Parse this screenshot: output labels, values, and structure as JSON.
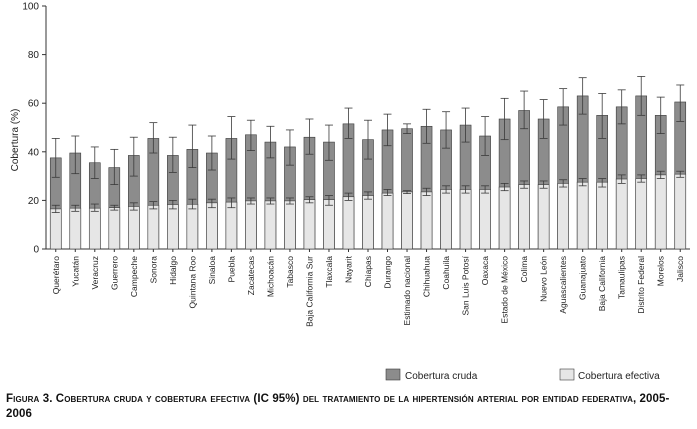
{
  "chart_data": {
    "type": "bar",
    "stacked": true,
    "ylabel": "Cobertura (%)",
    "ylim": [
      0,
      100
    ],
    "yticks": [
      0,
      20,
      40,
      60,
      80,
      100
    ],
    "categories": [
      "Querétaro",
      "Yucatán",
      "Veracruz",
      "Guerrero",
      "Campeche",
      "Sonora",
      "Hidalgo",
      "Quintana Roo",
      "Sinaloa",
      "Puebla",
      "Zacatecas",
      "Michoacán",
      "Tabasco",
      "Baja California Sur",
      "Tlaxcala",
      "Nayarit",
      "Chiapas",
      "Durango",
      "Estimado nacional",
      "Chihuahua",
      "Coahuila",
      "San Luis Potosí",
      "Oaxaca",
      "Estado de México",
      "Colima",
      "Nuevo León",
      "Aguascalientes",
      "Guanajuato",
      "Baja California",
      "Tamaulipas",
      "Distrito Federal",
      "Morelos",
      "Jalisco"
    ],
    "series": [
      {
        "name": "Cobertura cruda",
        "values": [
          37.5,
          39.5,
          35.5,
          33.5,
          38.5,
          45.5,
          38.5,
          41,
          39.5,
          45.5,
          47,
          44,
          42,
          46,
          44,
          51.5,
          45,
          49,
          49.5,
          50.5,
          49,
          51,
          46.5,
          53.5,
          57,
          53.5,
          58.5,
          63,
          55,
          58.5,
          63,
          55,
          60.5
        ],
        "ci_lower": [
          29.5,
          31,
          29,
          26.5,
          30,
          39.5,
          31.5,
          33.5,
          32.5,
          37,
          40.5,
          37.5,
          34.5,
          39,
          36.5,
          45.5,
          37,
          42.5,
          47.5,
          43.5,
          41.5,
          44,
          38.5,
          45,
          49.5,
          45.5,
          51,
          55.5,
          45.5,
          51.5,
          55,
          47.5,
          52.5
        ],
        "ci_upper": [
          45.5,
          46.5,
          42,
          41,
          46,
          52,
          46,
          51,
          46.5,
          54.5,
          53,
          50.5,
          49,
          53.5,
          51,
          58,
          53,
          55.5,
          51.5,
          57.5,
          56.5,
          58,
          54.5,
          62,
          65,
          61.5,
          66,
          70.5,
          64,
          65.5,
          71,
          62.5,
          67.5
        ]
      },
      {
        "name": "Cobertura efectiva",
        "values": [
          16.5,
          16.8,
          16.8,
          17,
          17.5,
          18,
          18.3,
          18.4,
          19,
          19.3,
          19.8,
          19.8,
          19.8,
          20.3,
          20.3,
          21.5,
          22,
          23,
          23.5,
          23.5,
          24.5,
          24.5,
          24.5,
          25.5,
          26.5,
          26.5,
          27,
          27.5,
          27.5,
          28.8,
          29,
          30.5,
          30.8
        ],
        "ci_lower": [
          15,
          15.5,
          15.5,
          16,
          16,
          16.5,
          16.5,
          16.5,
          17,
          17,
          18.5,
          18.5,
          18.5,
          19,
          18,
          20,
          20.5,
          22,
          22.8,
          22,
          23,
          23,
          23,
          24,
          25,
          25,
          25.5,
          26,
          25.5,
          27,
          27.5,
          29,
          29.5
        ],
        "ci_upper": [
          18,
          18,
          18.5,
          18,
          19,
          19.5,
          20,
          20.5,
          20.5,
          21,
          21,
          21,
          21,
          21.5,
          22,
          23,
          23.5,
          24.5,
          24,
          25,
          26,
          26,
          26,
          27,
          28,
          28,
          28.5,
          29,
          29,
          30.5,
          30.5,
          32,
          32
        ]
      }
    ],
    "legend": [
      "Cobertura cruda",
      "Cobertura efectiva"
    ],
    "legend_position": "bottom-right",
    "colors": {
      "cruda": "#8c8c8c",
      "efectiva": "#e6e6e6",
      "edge": "#3a3a3a"
    }
  },
  "caption": "Figura 3. Cobertura cruda y cobertura efectiva (IC 95%) del tratamiento de la hipertensión arterial por entidad federativa, 2005-2006"
}
